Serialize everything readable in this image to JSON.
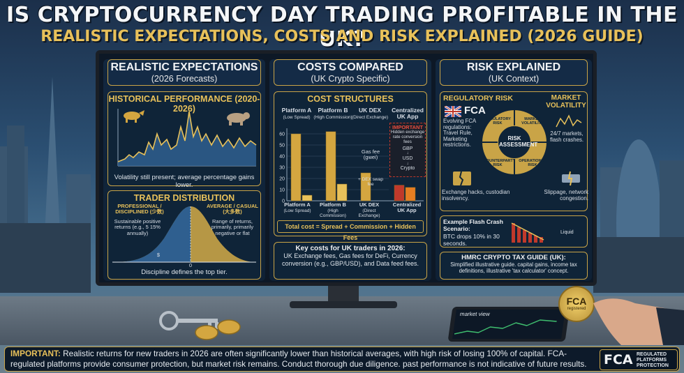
{
  "header": {
    "title": "IS CRYPTOCURRENCY DAY TRADING PROFITABLE IN THE UK?",
    "subtitle": "REALISTIC EXPECTATIONS, COSTS AND RISK EXPLAINED (2026 GUIDE)"
  },
  "colors": {
    "gold": "#c9a447",
    "navy": "#0f2438",
    "accent_red": "#c0392b"
  },
  "expectations": {
    "heading": "REALISTIC EXPECTATIONS",
    "subheading": "(2026 Forecasts)",
    "historical": {
      "title": "HISTORICAL PERFORMANCE (2020-2026)",
      "caption": "Volatility still present; average percentage gains lower.",
      "icons": [
        "bull-icon",
        "bear-icon"
      ]
    },
    "distribution": {
      "title": "TRADER DISTRIBUTION",
      "left_label": "PROFESSIONAL / DISCIPLINED (少数)",
      "left_desc": "Sustainable positive returns (e.g., 5 15% annually)",
      "right_label": "AVERAGE / CASUAL (大多数)",
      "right_desc": "Range of returns, primarily, primarily negative or flat",
      "zero_label": "0",
      "currency_label": "$",
      "caption": "Discipline defines the top tier."
    }
  },
  "costs": {
    "heading": "COSTS COMPARED",
    "subheading": "(UK Crypto Specific)",
    "structures": {
      "title": "COST STRUCTURES",
      "platforms": [
        {
          "name": "Platform A",
          "note": "(Low Spread)"
        },
        {
          "name": "Platform B",
          "note": "(High Commission)"
        },
        {
          "name": "UK DEX",
          "note": "(Direct Exchange)"
        },
        {
          "name": "Centralized UK App",
          "note": ""
        }
      ],
      "important_title": "IMPORTANT",
      "important_text": "Hidden exchange rate conversion fees",
      "conversion_steps": [
        "GBP",
        "↓",
        "USD",
        "↓",
        "Crypto"
      ],
      "gas_label": "Gas fee (gwei)",
      "dex_label": "+ DEX swap fee",
      "bottom_labels": [
        {
          "name": "Platform A",
          "note": "(Low Spread)"
        },
        {
          "name": "Platform B",
          "note": "(High Commission)"
        },
        {
          "name": "UK DEX",
          "note": "(Direct Exchange)"
        },
        {
          "name": "Centralized UK App",
          "note": ""
        }
      ],
      "formula": "Total cost = Spread + Commission + Hidden Fees"
    },
    "key_costs": {
      "title": "Key costs for UK traders in 2026:",
      "body": "UK Exchange fees, Gas fees for DeFi, Currency conversion (e.g., GBP/USD), and Data feed fees."
    }
  },
  "chart_data": {
    "type": "bar",
    "title": "COST STRUCTURES",
    "categories": [
      "Platform A",
      "Platform B",
      "UK DEX",
      "Centralized UK App"
    ],
    "series": [
      {
        "values": [
          60,
          62,
          25,
          14
        ]
      },
      {
        "values": [
          5,
          15,
          0,
          12
        ]
      }
    ],
    "yticks": [
      0,
      10,
      20,
      30,
      40,
      50,
      60
    ],
    "ylim": [
      0,
      65
    ],
    "grid": true
  },
  "risk": {
    "heading": "RISK EXPLAINED",
    "subheading": "(UK Context)",
    "regulatory": {
      "title": "REGULATORY RISK",
      "fca": "FCA",
      "body": "Evolving FCA regulations: Travel Rule, Marketing restrictions."
    },
    "market": {
      "title": "MARKET VOLATILITY",
      "body": "24/7 markets, flash crashes."
    },
    "wheel": {
      "center": "RISK ASSESSMENT",
      "segments": [
        "REGULATORY RISK",
        "MARKET VOLATILITY",
        "OPERATIONAL RISK",
        "COUNTERPARTY RISK"
      ]
    },
    "counterparty": {
      "body": "Exchange hacks, custodian insolvency."
    },
    "operational": {
      "body": "Slippage, network congestion."
    },
    "flash": {
      "title": "Example Flash Crash Scenario:",
      "body": "BTC drops 10% in 30 seconds.",
      "labels": [
        "Liquid"
      ]
    },
    "tax": {
      "title": "HMRC CRYPTO TAX GUIDE (UK):",
      "body": "Simplified illustrative guide. capital gains, income tax definitions, illustrative 'tax calculator' concept."
    }
  },
  "scene": {
    "tablet_label": "market view",
    "coin_label": "FCA",
    "coin_sub": "registered"
  },
  "footer": {
    "lead": "IMPORTANT:",
    "text": "Realistic returns for new traders in 2026 are often significantly lower than historical averages, with high risk of losing 100% of capital. FCA-regulated platforms provide consumer protection, but market risk remains. Conduct thorough due diligence. past performance is not indicative of future results.",
    "badge_logo": "FCA",
    "badge_text": "REGULATED PLATFORMS PROTECTION"
  }
}
